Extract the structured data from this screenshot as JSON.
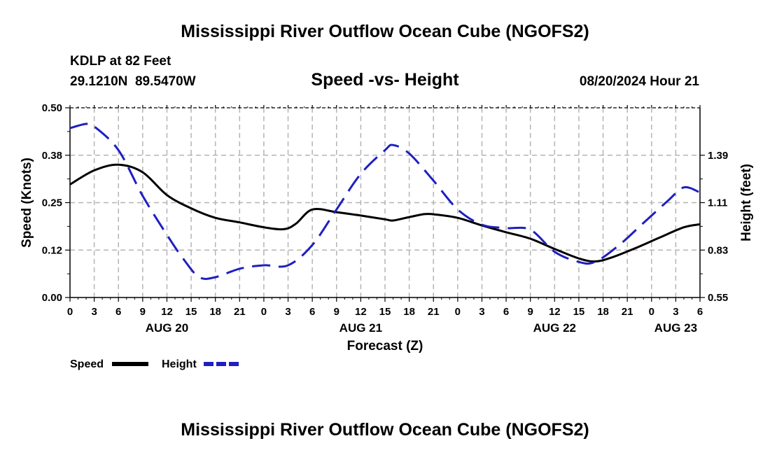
{
  "header": {
    "title": "Mississippi River Outflow Ocean Cube (NGOFS2)",
    "station": "KDLP at 82 Feet",
    "coords": "29.1210N  89.5470W",
    "subtitle": "Speed -vs- Height",
    "datetime": "08/20/2024 Hour 21"
  },
  "footer": {
    "title": "Mississippi River Outflow Ocean Cube (NGOFS2)"
  },
  "chart_data": {
    "type": "line",
    "xlabel": "Forecast (Z)",
    "ylabel_left": "Speed (Knots)",
    "ylabel_right": "Height (feet)",
    "x_hours": [
      0,
      78
    ],
    "hour_tick_labels": [
      "0",
      "3",
      "6",
      "9",
      "12",
      "15",
      "18",
      "21",
      "0",
      "3",
      "6",
      "9",
      "12",
      "15",
      "18",
      "21",
      "0",
      "3",
      "6",
      "9",
      "12",
      "15",
      "18",
      "21",
      "0",
      "3",
      "6"
    ],
    "day_labels": [
      {
        "label": "AUG 20",
        "hour": 12
      },
      {
        "label": "AUG 21",
        "hour": 36
      },
      {
        "label": "AUG 22",
        "hour": 60
      },
      {
        "label": "AUG 23",
        "hour": 75
      }
    ],
    "left_axis": {
      "ylim": [
        0,
        0.5
      ],
      "ticks": [
        0.0,
        0.125,
        0.25,
        0.375,
        0.5
      ],
      "tick_labels": [
        "0.00",
        "0.12",
        "0.25",
        "0.38",
        "0.50"
      ]
    },
    "right_axis": {
      "ylim": [
        0.55,
        1.67
      ],
      "ticks": [
        0.55,
        0.83,
        1.11,
        1.39
      ],
      "tick_labels": [
        "0.55",
        "0.83",
        "1.11",
        "1.39"
      ]
    },
    "grid": true,
    "series": [
      {
        "name": "Speed",
        "axis": "left",
        "color": "#000000",
        "dash": "solid",
        "points": [
          [
            0,
            0.298
          ],
          [
            3,
            0.335
          ],
          [
            6,
            0.35
          ],
          [
            9,
            0.33
          ],
          [
            12,
            0.27
          ],
          [
            15,
            0.235
          ],
          [
            18,
            0.21
          ],
          [
            21,
            0.198
          ],
          [
            24,
            0.185
          ],
          [
            26.5,
            0.18
          ],
          [
            28,
            0.195
          ],
          [
            30,
            0.232
          ],
          [
            33,
            0.225
          ],
          [
            36,
            0.216
          ],
          [
            39,
            0.206
          ],
          [
            40,
            0.203
          ],
          [
            42,
            0.212
          ],
          [
            44,
            0.22
          ],
          [
            45.5,
            0.218
          ],
          [
            48,
            0.21
          ],
          [
            51,
            0.19
          ],
          [
            54,
            0.172
          ],
          [
            57,
            0.155
          ],
          [
            60,
            0.128
          ],
          [
            63,
            0.103
          ],
          [
            65,
            0.095
          ],
          [
            67,
            0.105
          ],
          [
            70,
            0.13
          ],
          [
            73,
            0.158
          ],
          [
            76,
            0.185
          ],
          [
            78,
            0.193
          ]
        ]
      },
      {
        "name": "Height",
        "axis": "right",
        "color": "#1f1fc0",
        "dash": "dashed",
        "points": [
          [
            0,
            1.55
          ],
          [
            2,
            1.575
          ],
          [
            3,
            1.56
          ],
          [
            6,
            1.42
          ],
          [
            9,
            1.15
          ],
          [
            12,
            0.92
          ],
          [
            14,
            0.78
          ],
          [
            16,
            0.67
          ],
          [
            18,
            0.67
          ],
          [
            21,
            0.72
          ],
          [
            24,
            0.74
          ],
          [
            27,
            0.74
          ],
          [
            30,
            0.86
          ],
          [
            33,
            1.07
          ],
          [
            36,
            1.28
          ],
          [
            39,
            1.42
          ],
          [
            40,
            1.45
          ],
          [
            42,
            1.4
          ],
          [
            45,
            1.24
          ],
          [
            48,
            1.07
          ],
          [
            51,
            0.98
          ],
          [
            54,
            0.96
          ],
          [
            57,
            0.95
          ],
          [
            60,
            0.82
          ],
          [
            63,
            0.76
          ],
          [
            65,
            0.76
          ],
          [
            68,
            0.86
          ],
          [
            71,
            0.99
          ],
          [
            74,
            1.12
          ],
          [
            76,
            1.2
          ],
          [
            78,
            1.17
          ]
        ]
      }
    ],
    "legend": [
      {
        "label": "Speed",
        "color": "#000000",
        "dash": "solid"
      },
      {
        "label": "Height",
        "color": "#1f1fc0",
        "dash": "dashed"
      }
    ]
  }
}
